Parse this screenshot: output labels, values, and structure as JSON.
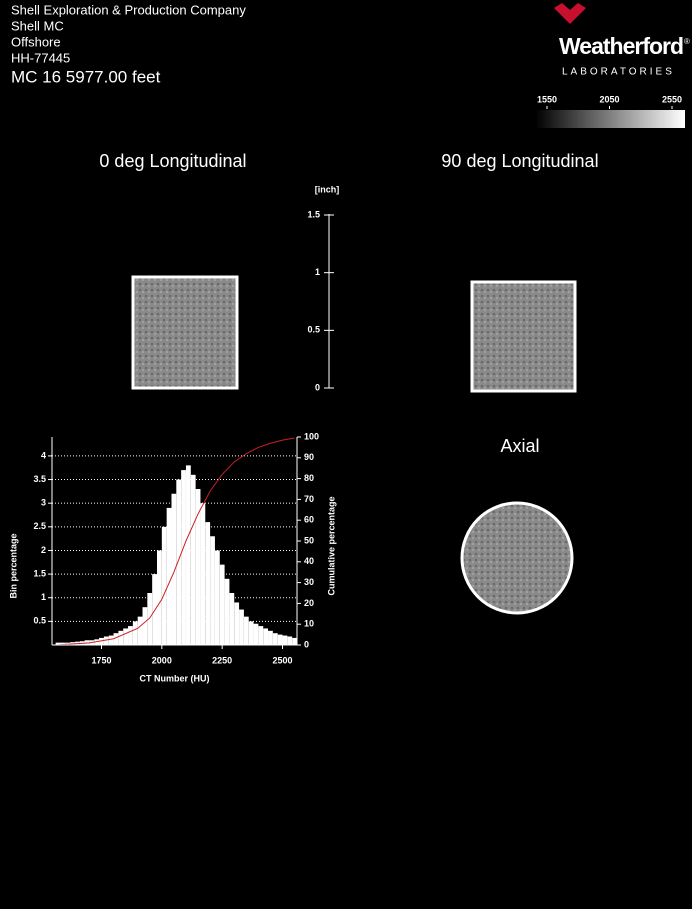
{
  "header": {
    "lines": [
      "Shell Exploration & Production Company",
      "Shell MC",
      "Offshore",
      "HH-77445"
    ],
    "sample": "MC 16  5977.00  feet"
  },
  "logo": {
    "name": "Weatherford",
    "mark": "®",
    "sub": "LABORATORIES"
  },
  "colorbar": {
    "ticks": [
      1550,
      2050,
      2550
    ]
  },
  "views": {
    "left": "0 deg Longitudinal",
    "right": "90 deg Longitudinal",
    "axial": "Axial"
  },
  "scale": {
    "label": "[inch]",
    "lim": [
      0,
      1.5
    ],
    "ticks": [
      0,
      0.5,
      1,
      1.5
    ]
  },
  "chart_data": {
    "type": "histogram",
    "xlabel": "CT Number (HU)",
    "ylabel": "Bin percentage",
    "y2label": "Cumulative percentage",
    "bins": [
      1560,
      1580,
      1600,
      1620,
      1640,
      1660,
      1680,
      1700,
      1720,
      1740,
      1760,
      1780,
      1800,
      1820,
      1840,
      1860,
      1880,
      1900,
      1920,
      1940,
      1960,
      1980,
      2000,
      2020,
      2040,
      2060,
      2080,
      2100,
      2120,
      2140,
      2160,
      2180,
      2200,
      2220,
      2240,
      2260,
      2280,
      2300,
      2320,
      2340,
      2360,
      2380,
      2400,
      2420,
      2440,
      2460,
      2480,
      2500,
      2520,
      2540,
      2560
    ],
    "values": [
      0.05,
      0.05,
      0.05,
      0.06,
      0.07,
      0.08,
      0.1,
      0.1,
      0.12,
      0.15,
      0.18,
      0.2,
      0.25,
      0.3,
      0.35,
      0.4,
      0.5,
      0.6,
      0.8,
      1.1,
      1.5,
      2.0,
      2.5,
      2.9,
      3.2,
      3.5,
      3.7,
      3.8,
      3.6,
      3.3,
      3.0,
      2.6,
      2.3,
      2.0,
      1.7,
      1.4,
      1.1,
      0.9,
      0.75,
      0.6,
      0.5,
      0.45,
      0.4,
      0.35,
      0.3,
      0.25,
      0.22,
      0.2,
      0.18,
      0.15
    ],
    "color": "#ffffff",
    "series": [
      {
        "type": "line",
        "axis": "y2",
        "color": "#cc2020",
        "x": [
          1560,
          1700,
          1800,
          1900,
          1950,
          2000,
          2050,
          2100,
          2150,
          2200,
          2250,
          2300,
          2350,
          2400,
          2450,
          2500,
          2550
        ],
        "values": [
          0,
          1,
          3,
          8,
          13,
          22,
          35,
          50,
          63,
          74,
          82,
          88,
          92,
          95,
          97,
          98.5,
          99.5
        ]
      }
    ],
    "xlim": [
      1545,
      2560
    ],
    "xticks": [
      1750,
      2000,
      2250,
      2500
    ],
    "ylim": [
      0,
      4.4
    ],
    "yticks": [
      0.5,
      1,
      1.5,
      2,
      2.5,
      3,
      3.5,
      4
    ],
    "y2lim": [
      0,
      100
    ],
    "y2ticks": [
      0,
      10,
      20,
      30,
      40,
      50,
      60,
      70,
      80,
      90,
      100
    ],
    "grid": true
  }
}
